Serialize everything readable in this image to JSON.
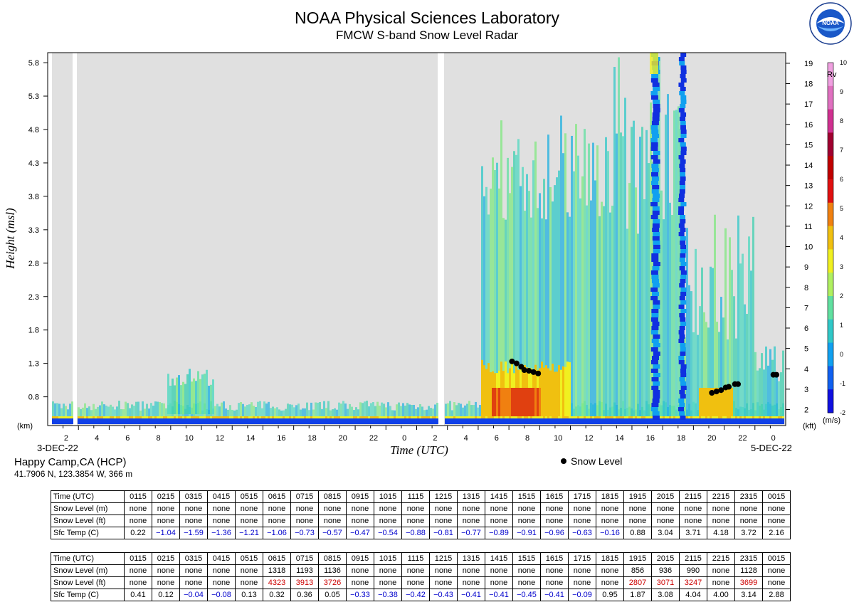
{
  "title": "NOAA Physical Sciences Laboratory",
  "subtitle": "FMCW S-band Snow Level Radar",
  "logo_text": "NOAA",
  "logo_ring_text": "NATIONAL OCEANIC AND ATMOSPHERIC ADMINISTRATION · U.S. DEPARTMENT OF COMMERCE",
  "station": {
    "name": "Happy Camp,CA (HCP)",
    "coords": "41.7906 N, 123.3854 W, 366 m"
  },
  "legend": {
    "snow_level_label": "Snow Level"
  },
  "chart_data": {
    "type": "heatmap",
    "xlabel": "Time (UTC)",
    "ylabel": "Height (msl)",
    "y_unit_left": "(km)",
    "y_unit_right": "(kft)",
    "colorbar_title": "Rv",
    "colorbar_unit": "(m/s)",
    "colorbar_ticks": [
      -2,
      -1,
      0,
      1,
      2,
      3,
      4,
      5,
      6,
      7,
      8,
      9,
      10
    ],
    "colorbar_colors": [
      "#1010e0",
      "#1060f0",
      "#10a0f0",
      "#30c8c8",
      "#60e0a0",
      "#b0f060",
      "#f0f020",
      "#f0c010",
      "#f08010",
      "#e01010",
      "#c00000",
      "#a00030",
      "#d03090",
      "#e070c0",
      "#f0a0e0"
    ],
    "y_ticks_km": [
      0.8,
      1.3,
      1.8,
      2.3,
      2.8,
      3.3,
      3.8,
      4.3,
      4.8,
      5.3,
      5.8
    ],
    "y_ticks_kft": [
      2,
      3,
      4,
      5,
      6,
      7,
      8,
      9,
      10,
      11,
      12,
      13,
      14,
      15,
      16,
      17,
      18,
      19
    ],
    "ylim_km": [
      0.37,
      5.95
    ],
    "x_tick_labels": [
      "2",
      "4",
      "6",
      "8",
      "10",
      "12",
      "14",
      "16",
      "18",
      "20",
      "22",
      "0",
      "2",
      "4",
      "6",
      "8",
      "10",
      "12",
      "14",
      "16",
      "18",
      "20",
      "22",
      "0"
    ],
    "x_range_hours": [
      0,
      48
    ],
    "start_date": "3-DEC-22",
    "end_date": "5-DEC-22",
    "snow_level_points": [
      {
        "t": 30.2,
        "h": 1.33
      },
      {
        "t": 30.5,
        "h": 1.3
      },
      {
        "t": 30.8,
        "h": 1.25
      },
      {
        "t": 31.0,
        "h": 1.2
      },
      {
        "t": 31.3,
        "h": 1.19
      },
      {
        "t": 31.6,
        "h": 1.17
      },
      {
        "t": 31.9,
        "h": 1.15
      },
      {
        "t": 43.2,
        "h": 0.86
      },
      {
        "t": 43.5,
        "h": 0.88
      },
      {
        "t": 43.8,
        "h": 0.9
      },
      {
        "t": 44.1,
        "h": 0.94
      },
      {
        "t": 44.3,
        "h": 0.95
      },
      {
        "t": 44.7,
        "h": 0.99
      },
      {
        "t": 44.9,
        "h": 0.99
      },
      {
        "t": 47.2,
        "h": 1.13
      },
      {
        "t": 47.4,
        "h": 1.13
      }
    ]
  },
  "tables": [
    {
      "header_label": "Time (UTC)",
      "times": [
        "0115",
        "0215",
        "0315",
        "0415",
        "0515",
        "0615",
        "0715",
        "0815",
        "0915",
        "1015",
        "1115",
        "1215",
        "1315",
        "1415",
        "1515",
        "1615",
        "1715",
        "1815",
        "1915",
        "2015",
        "2115",
        "2215",
        "2315",
        "0015"
      ],
      "snow_m_label": "Snow Level (m)",
      "snow_m": [
        "none",
        "none",
        "none",
        "none",
        "none",
        "none",
        "none",
        "none",
        "none",
        "none",
        "none",
        "none",
        "none",
        "none",
        "none",
        "none",
        "none",
        "none",
        "none",
        "none",
        "none",
        "none",
        "none",
        "none"
      ],
      "snow_ft_label": "Snow Level (ft)",
      "snow_ft": [
        "none",
        "none",
        "none",
        "none",
        "none",
        "none",
        "none",
        "none",
        "none",
        "none",
        "none",
        "none",
        "none",
        "none",
        "none",
        "none",
        "none",
        "none",
        "none",
        "none",
        "none",
        "none",
        "none",
        "none"
      ],
      "temp_label": "Sfc Temp (C)",
      "temp": [
        "0.22",
        "−1.04",
        "−1.59",
        "−1.36",
        "−1.21",
        "−1.06",
        "−0.73",
        "−0.57",
        "−0.47",
        "−0.54",
        "−0.88",
        "−0.81",
        "−0.77",
        "−0.89",
        "−0.91",
        "−0.96",
        "−0.63",
        "−0.16",
        "0.88",
        "3.04",
        "3.71",
        "4.18",
        "3.72",
        "2.16"
      ]
    },
    {
      "header_label": "Time (UTC)",
      "times": [
        "0115",
        "0215",
        "0315",
        "0415",
        "0515",
        "0615",
        "0715",
        "0815",
        "0915",
        "1015",
        "1115",
        "1215",
        "1315",
        "1415",
        "1515",
        "1615",
        "1715",
        "1815",
        "1915",
        "2015",
        "2115",
        "2215",
        "2315",
        "0015"
      ],
      "snow_m_label": "Snow Level (m)",
      "snow_m": [
        "none",
        "none",
        "none",
        "none",
        "none",
        "1318",
        "1193",
        "1136",
        "none",
        "none",
        "none",
        "none",
        "none",
        "none",
        "none",
        "none",
        "none",
        "none",
        "856",
        "936",
        "990",
        "none",
        "1128",
        "none"
      ],
      "snow_ft_label": "Snow Level (ft)",
      "snow_ft": [
        "none",
        "none",
        "none",
        "none",
        "none",
        "4323",
        "3913",
        "3726",
        "none",
        "none",
        "none",
        "none",
        "none",
        "none",
        "none",
        "none",
        "none",
        "none",
        "2807",
        "3071",
        "3247",
        "none",
        "3699",
        "none"
      ],
      "temp_label": "Sfc Temp (C)",
      "temp": [
        "0.41",
        "0.12",
        "−0.04",
        "−0.08",
        "0.13",
        "0.32",
        "0.36",
        "0.05",
        "−0.33",
        "−0.38",
        "−0.42",
        "−0.43",
        "−0.41",
        "−0.41",
        "−0.45",
        "−0.41",
        "−0.09",
        "0.95",
        "1.87",
        "3.08",
        "4.04",
        "4.00",
        "3.14",
        "2.88"
      ]
    }
  ]
}
